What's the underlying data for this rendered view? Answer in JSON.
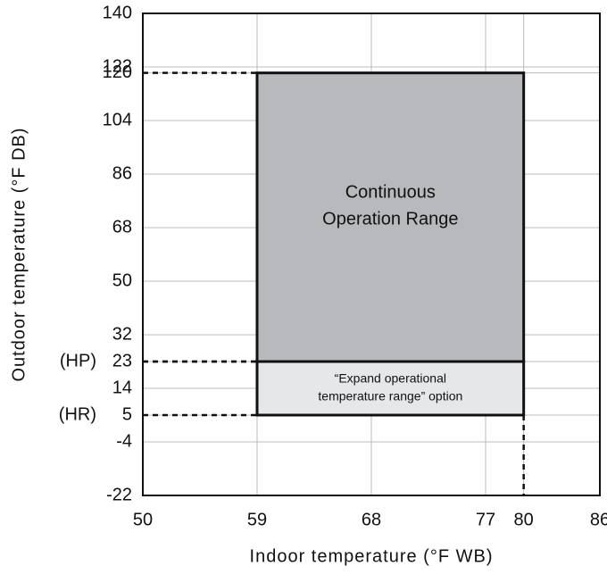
{
  "chart_data": {
    "type": "range",
    "xlabel": "Indoor temperature (°F WB)",
    "ylabel": "Outdoor temperature (°F DB)",
    "xlim": [
      50,
      86
    ],
    "ylim": [
      -22,
      140
    ],
    "xticks": [
      50,
      59,
      68,
      77,
      80,
      86
    ],
    "yticks": [
      -22,
      -4,
      5,
      14,
      23,
      32,
      50,
      68,
      86,
      104,
      120,
      122,
      140
    ],
    "grid": true,
    "regions": [
      {
        "label_lines": [
          "Continuous",
          "Operation Range"
        ],
        "x": [
          59,
          80
        ],
        "y": [
          23,
          120
        ],
        "color": "#b8b9bc"
      },
      {
        "label_lines": [
          "“Expand operational",
          "temperature range” option"
        ],
        "x": [
          59,
          80
        ],
        "y": [
          5,
          23
        ],
        "color": "#e6e7e8"
      }
    ],
    "annotations": [
      {
        "text": "(HP)",
        "y": 23
      },
      {
        "text": "(HR)",
        "y": 5
      }
    ]
  }
}
